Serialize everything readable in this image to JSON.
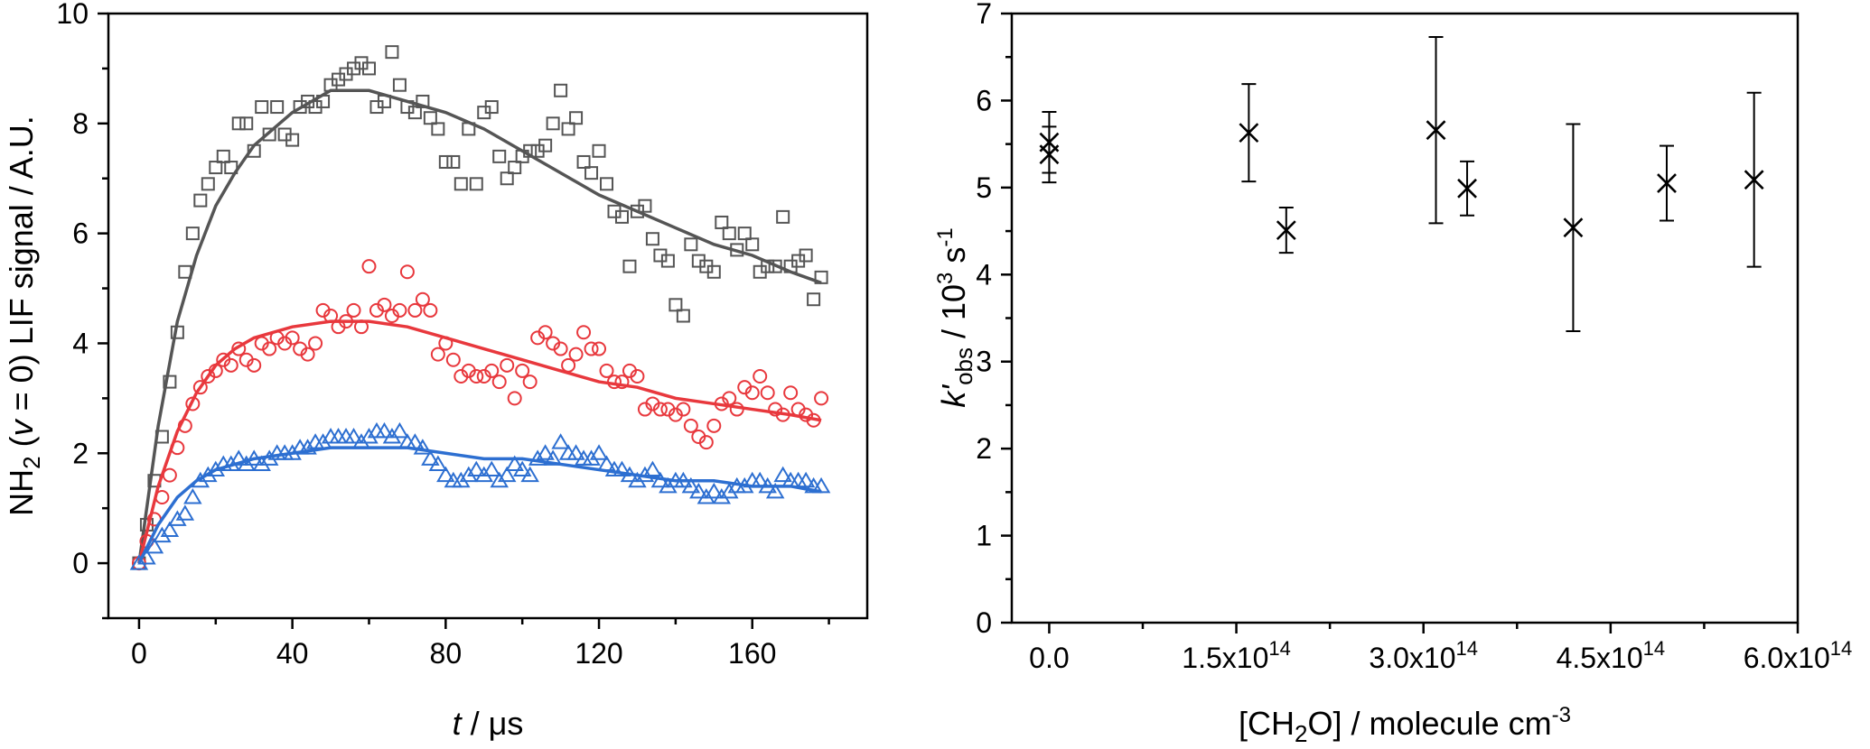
{
  "chart_data": [
    {
      "type": "scatter",
      "xlabel": "t / μs",
      "ylabel": "NH2 (v = 0) LIF signal / A.U.",
      "xlim": [
        -8,
        190
      ],
      "ylim": [
        -1,
        10
      ],
      "xticks": [
        0,
        40,
        80,
        120,
        160
      ],
      "yticks": [
        0,
        2,
        4,
        6,
        8,
        10
      ],
      "xtick_labels": [
        "0",
        "40",
        "80",
        "120",
        "160"
      ],
      "ytick_labels": [
        "0",
        "2",
        "4",
        "6",
        "8",
        "10"
      ],
      "grid": false,
      "series": [
        {
          "marker": "square",
          "color": "#555555",
          "x": [
            0,
            2,
            4,
            6,
            8,
            10,
            12,
            14,
            16,
            18,
            20,
            22,
            24,
            26,
            28,
            30,
            32,
            34,
            36,
            38,
            40,
            42,
            44,
            46,
            48,
            50,
            52,
            54,
            56,
            58,
            60,
            62,
            64,
            66,
            68,
            70,
            72,
            74,
            76,
            78,
            80,
            82,
            84,
            86,
            88,
            90,
            92,
            94,
            96,
            98,
            100,
            102,
            104,
            106,
            108,
            110,
            112,
            114,
            116,
            118,
            120,
            122,
            124,
            126,
            128,
            130,
            132,
            134,
            136,
            138,
            140,
            142,
            144,
            146,
            148,
            150,
            152,
            154,
            156,
            158,
            160,
            162,
            164,
            166,
            168,
            170,
            172,
            174,
            176,
            178
          ],
          "y": [
            0,
            0.7,
            1.5,
            2.3,
            3.3,
            4.2,
            5.3,
            6.0,
            6.6,
            6.9,
            7.2,
            7.4,
            7.2,
            8.0,
            8.0,
            7.5,
            8.3,
            7.8,
            8.3,
            7.8,
            7.7,
            8.3,
            8.4,
            8.3,
            8.4,
            8.7,
            8.8,
            8.9,
            9.0,
            9.1,
            9.0,
            8.3,
            8.4,
            9.3,
            8.7,
            8.3,
            8.2,
            8.4,
            8.1,
            7.9,
            7.3,
            7.3,
            6.9,
            7.9,
            6.9,
            8.2,
            8.3,
            7.4,
            7.0,
            7.2,
            7.4,
            7.5,
            7.5,
            7.6,
            8.0,
            8.6,
            7.9,
            8.1,
            7.3,
            7.1,
            7.5,
            6.9,
            6.4,
            6.3,
            5.4,
            6.4,
            6.5,
            5.9,
            5.6,
            5.5,
            4.7,
            4.5,
            5.8,
            5.5,
            5.4,
            5.3,
            6.2,
            6.0,
            5.7,
            6.0,
            5.8,
            5.3,
            5.4,
            5.4,
            6.3,
            5.4,
            5.5,
            5.6,
            4.8,
            5.2
          ],
          "fit": {
            "x": [
              0,
              5,
              10,
              15,
              20,
              25,
              30,
              40,
              50,
              60,
              70,
              80,
              90,
              100,
              110,
              120,
              130,
              140,
              150,
              160,
              170,
              178
            ],
            "y": [
              0,
              2.5,
              4.4,
              5.6,
              6.5,
              7.1,
              7.6,
              8.2,
              8.6,
              8.6,
              8.4,
              8.2,
              7.9,
              7.5,
              7.1,
              6.7,
              6.4,
              6.1,
              5.8,
              5.6,
              5.3,
              5.1
            ]
          }
        },
        {
          "marker": "circle",
          "color": "#e8383d",
          "x": [
            0,
            2,
            4,
            6,
            8,
            10,
            12,
            14,
            16,
            18,
            20,
            22,
            24,
            26,
            28,
            30,
            32,
            34,
            36,
            38,
            40,
            42,
            44,
            46,
            48,
            50,
            52,
            54,
            56,
            58,
            60,
            62,
            64,
            66,
            68,
            70,
            72,
            74,
            76,
            78,
            80,
            82,
            84,
            86,
            88,
            90,
            92,
            94,
            96,
            98,
            100,
            102,
            104,
            106,
            108,
            110,
            112,
            114,
            116,
            118,
            120,
            122,
            124,
            126,
            128,
            130,
            132,
            134,
            136,
            138,
            140,
            142,
            144,
            146,
            148,
            150,
            152,
            154,
            156,
            158,
            160,
            162,
            164,
            166,
            168,
            170,
            172,
            174,
            176,
            178
          ],
          "y": [
            0,
            0.4,
            0.8,
            1.2,
            1.6,
            2.1,
            2.5,
            2.9,
            3.2,
            3.4,
            3.5,
            3.7,
            3.6,
            3.9,
            3.7,
            3.6,
            4.0,
            3.9,
            4.1,
            4.0,
            4.1,
            3.9,
            3.8,
            4.0,
            4.6,
            4.5,
            4.3,
            4.4,
            4.6,
            4.3,
            5.4,
            4.6,
            4.7,
            4.5,
            4.6,
            5.3,
            4.6,
            4.8,
            4.6,
            3.8,
            4.0,
            3.7,
            3.4,
            3.5,
            3.4,
            3.4,
            3.5,
            3.3,
            3.6,
            3.0,
            3.5,
            3.3,
            4.1,
            4.2,
            4.0,
            3.9,
            3.6,
            3.8,
            4.2,
            3.9,
            3.9,
            3.5,
            3.3,
            3.3,
            3.5,
            3.4,
            2.8,
            2.9,
            2.8,
            2.8,
            2.7,
            2.8,
            2.5,
            2.3,
            2.2,
            2.5,
            2.9,
            3.0,
            2.8,
            3.2,
            3.1,
            3.4,
            3.1,
            2.8,
            2.7,
            3.1,
            2.8,
            2.7,
            2.6,
            3.0
          ],
          "fit": {
            "x": [
              0,
              5,
              10,
              15,
              20,
              25,
              30,
              40,
              50,
              60,
              70,
              80,
              90,
              100,
              110,
              120,
              130,
              140,
              150,
              160,
              170,
              178
            ],
            "y": [
              0,
              1.4,
              2.4,
              3.1,
              3.6,
              3.9,
              4.1,
              4.3,
              4.4,
              4.4,
              4.3,
              4.1,
              3.9,
              3.7,
              3.5,
              3.3,
              3.2,
              3.0,
              2.9,
              2.8,
              2.7,
              2.6
            ]
          }
        },
        {
          "marker": "triangle",
          "color": "#2d6fd1",
          "x": [
            0,
            2,
            4,
            6,
            8,
            10,
            12,
            14,
            16,
            18,
            20,
            22,
            24,
            26,
            28,
            30,
            32,
            34,
            36,
            38,
            40,
            42,
            44,
            46,
            48,
            50,
            52,
            54,
            56,
            58,
            60,
            62,
            64,
            66,
            68,
            70,
            72,
            74,
            76,
            78,
            80,
            82,
            84,
            86,
            88,
            90,
            92,
            94,
            96,
            98,
            100,
            102,
            104,
            106,
            108,
            110,
            112,
            114,
            116,
            118,
            120,
            122,
            124,
            126,
            128,
            130,
            132,
            134,
            136,
            138,
            140,
            142,
            144,
            146,
            148,
            150,
            152,
            154,
            156,
            158,
            160,
            162,
            164,
            166,
            168,
            170,
            172,
            174,
            176,
            178
          ],
          "y": [
            0,
            0.1,
            0.3,
            0.5,
            0.6,
            0.8,
            0.9,
            1.2,
            1.5,
            1.6,
            1.7,
            1.8,
            1.8,
            1.9,
            1.8,
            1.9,
            1.8,
            1.9,
            2.0,
            2.0,
            2.0,
            2.1,
            2.1,
            2.2,
            2.2,
            2.3,
            2.3,
            2.3,
            2.3,
            2.2,
            2.3,
            2.4,
            2.4,
            2.3,
            2.4,
            2.2,
            2.2,
            2.1,
            1.9,
            1.8,
            1.6,
            1.5,
            1.5,
            1.6,
            1.7,
            1.6,
            1.7,
            1.5,
            1.6,
            1.8,
            1.7,
            1.6,
            1.9,
            2.0,
            1.9,
            2.2,
            2.0,
            2.0,
            1.9,
            1.9,
            2.0,
            1.8,
            1.7,
            1.7,
            1.6,
            1.5,
            1.6,
            1.7,
            1.5,
            1.4,
            1.5,
            1.5,
            1.4,
            1.3,
            1.2,
            1.3,
            1.2,
            1.3,
            1.4,
            1.4,
            1.5,
            1.5,
            1.4,
            1.3,
            1.6,
            1.5,
            1.5,
            1.5,
            1.4,
            1.4
          ],
          "fit": {
            "x": [
              0,
              5,
              10,
              15,
              20,
              25,
              30,
              40,
              50,
              60,
              70,
              80,
              90,
              100,
              110,
              120,
              130,
              140,
              150,
              160,
              170,
              178
            ],
            "y": [
              0,
              0.7,
              1.2,
              1.5,
              1.7,
              1.8,
              1.9,
              2.0,
              2.1,
              2.1,
              2.1,
              2.0,
              1.9,
              1.9,
              1.8,
              1.7,
              1.6,
              1.5,
              1.5,
              1.4,
              1.4,
              1.3
            ]
          }
        }
      ]
    },
    {
      "type": "scatter",
      "xlabel": "[CH2O] / molecule cm-3",
      "ylabel": "k'obs / 10^3 s-1",
      "xlim": [
        -30000000000000.0,
        600000000000000.0
      ],
      "ylim": [
        0,
        7
      ],
      "xticks": [
        0,
        150000000000000.0,
        300000000000000.0,
        450000000000000.0,
        600000000000000.0
      ],
      "yticks": [
        0,
        1,
        2,
        3,
        4,
        5,
        6,
        7
      ],
      "xtick_labels": [
        "0.0",
        "1.5x10",
        "3.0x10",
        "4.5x10",
        "6.0x10"
      ],
      "xtick_exponents": [
        "",
        "14",
        "14",
        "14",
        "14"
      ],
      "ytick_labels": [
        "0",
        "1",
        "2",
        "3",
        "4",
        "5",
        "6",
        "7"
      ],
      "grid": false,
      "marker": "x",
      "points": [
        {
          "x": 0.0,
          "y": 5.52,
          "err": 0.35
        },
        {
          "x": 0.0,
          "y": 5.38,
          "err": 0.32
        },
        {
          "x": 160000000000000.0,
          "y": 5.63,
          "err": 0.56
        },
        {
          "x": 190000000000000.0,
          "y": 4.51,
          "err": 0.26
        },
        {
          "x": 310000000000000.0,
          "y": 5.66,
          "err": 1.07
        },
        {
          "x": 335000000000000.0,
          "y": 4.99,
          "err": 0.31
        },
        {
          "x": 420000000000000.0,
          "y": 4.54,
          "err": 1.19
        },
        {
          "x": 495000000000000.0,
          "y": 5.05,
          "err": 0.43
        },
        {
          "x": 565000000000000.0,
          "y": 5.09,
          "err": 1.0
        }
      ]
    }
  ],
  "labels": {
    "left_x_italic": "t",
    "left_x_rest": " / μs",
    "left_y_a": "NH",
    "left_y_sub": "2",
    "left_y_b": " (",
    "left_y_v": "v",
    "left_y_c": " = 0) LIF signal / A.U.",
    "right_x_a": "[CH",
    "right_x_sub": "2",
    "right_x_b": "O] / molecule cm",
    "right_x_sup": "-3",
    "right_y_k": "k'",
    "right_y_sub": "obs",
    "right_y_b": " / 10",
    "right_y_sup": "3",
    "right_y_c": " s",
    "right_y_sup2": "-1"
  }
}
